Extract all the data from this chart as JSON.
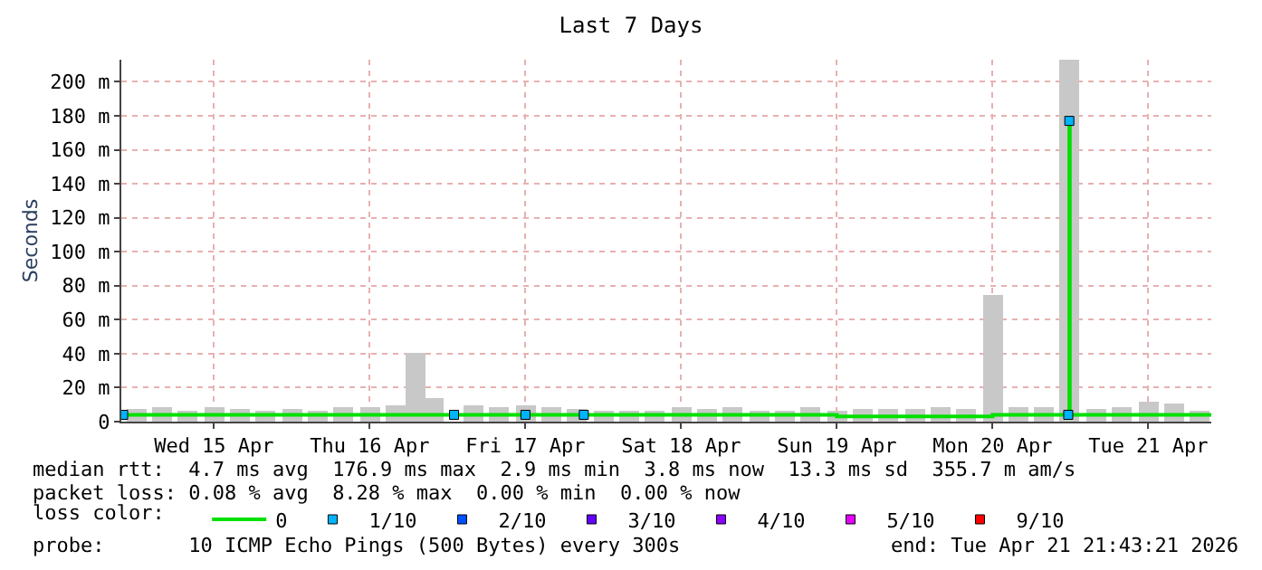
{
  "chart_data": {
    "type": "line",
    "title": "Last 7 Days",
    "ylabel": "Seconds",
    "xlim": [
      "2026-04-14T21:43",
      "2026-04-21T21:43"
    ],
    "xticks": [
      {
        "value": "2026-04-15T12:00",
        "label": "Wed 15 Apr"
      },
      {
        "value": "2026-04-16T12:00",
        "label": "Thu 16 Apr"
      },
      {
        "value": "2026-04-17T12:00",
        "label": "Fri 17 Apr"
      },
      {
        "value": "2026-04-18T12:00",
        "label": "Sat 18 Apr"
      },
      {
        "value": "2026-04-19T12:00",
        "label": "Sun 19 Apr"
      },
      {
        "value": "2026-04-20T12:00",
        "label": "Mon 20 Apr"
      },
      {
        "value": "2026-04-21T12:00",
        "label": "Tue 21 Apr"
      }
    ],
    "ylim": [
      0,
      213
    ],
    "yticks": [
      0,
      {
        "value": 20,
        "label": "20 m"
      },
      {
        "value": 40,
        "label": "40 m"
      },
      {
        "value": 60,
        "label": "60 m"
      },
      {
        "value": 80,
        "label": "80 m"
      },
      {
        "value": 100,
        "label": "100 m"
      },
      {
        "value": 120,
        "label": "120 m"
      },
      {
        "value": 140,
        "label": "140 m"
      },
      {
        "value": 160,
        "label": "160 m"
      },
      {
        "value": 180,
        "label": "180 m"
      },
      {
        "value": 200,
        "label": "200 m"
      }
    ],
    "grid": true,
    "legend": "bottom",
    "legend_title": "loss color:",
    "series": [
      {
        "type": "bar",
        "color": "#c8c8c8",
        "x": [
          "2026-04-15T00:00",
          "2026-04-15T04:00",
          "2026-04-15T08:00",
          "2026-04-15T12:00",
          "2026-04-15T16:00",
          "2026-04-15T20:00",
          "2026-04-16T00:00",
          "2026-04-16T04:00",
          "2026-04-16T08:00",
          "2026-04-16T12:00",
          "2026-04-16T16:00",
          "2026-04-16T19:00",
          "2026-04-16T22:00",
          "2026-04-17T04:00",
          "2026-04-17T08:00",
          "2026-04-17T12:00",
          "2026-04-17T16:00",
          "2026-04-17T20:00",
          "2026-04-18T00:00",
          "2026-04-18T04:00",
          "2026-04-18T08:00",
          "2026-04-18T12:00",
          "2026-04-18T16:00",
          "2026-04-18T20:00",
          "2026-04-19T00:00",
          "2026-04-19T04:00",
          "2026-04-19T08:00",
          "2026-04-19T12:00",
          "2026-04-19T16:00",
          "2026-04-19T20:00",
          "2026-04-20T00:00",
          "2026-04-20T04:00",
          "2026-04-20T08:00",
          "2026-04-20T12:00",
          "2026-04-20T16:00",
          "2026-04-20T20:00",
          "2026-04-20T23:50",
          "2026-04-21T04:00",
          "2026-04-21T08:00",
          "2026-04-21T12:00",
          "2026-04-21T16:00",
          "2026-04-21T20:00"
        ],
        "values": [
          7,
          8,
          6,
          9,
          7,
          6,
          7,
          6,
          8,
          9,
          10,
          40,
          14,
          10,
          8,
          10,
          8,
          7,
          6,
          6,
          6,
          8,
          7,
          8,
          6,
          6,
          8,
          6,
          7,
          7,
          7,
          8,
          7,
          75,
          9,
          9,
          213,
          7,
          8,
          12,
          11,
          6
        ]
      },
      {
        "name": "0",
        "color": "#00e000",
        "x": [
          "2026-04-14T21:43",
          "2026-04-17T12:00",
          "2026-04-19T08:00",
          "2026-04-19T12:00",
          "2026-04-20T12:00",
          "2026-04-20T23:45",
          "2026-04-20T23:50",
          "2026-04-20T23:55",
          "2026-04-21T21:43"
        ],
        "values": [
          4,
          4,
          4,
          3,
          4,
          4,
          177,
          4,
          4
        ]
      },
      {
        "name": "1/10",
        "type": "scatter",
        "marker": "square",
        "color": "#00b4ff",
        "x": [
          "2026-04-14T22:00",
          "2026-04-17T01:00",
          "2026-04-17T12:00",
          "2026-04-17T21:00",
          "2026-04-20T23:40",
          "2026-04-20T23:50"
        ],
        "values": [
          4,
          4,
          4,
          4,
          4,
          177
        ]
      },
      {
        "name": "2/10",
        "type": "scatter",
        "marker": "square",
        "color": "#0050ff"
      },
      {
        "name": "3/10",
        "type": "scatter",
        "marker": "square",
        "color": "#6400ff"
      },
      {
        "name": "4/10",
        "type": "scatter",
        "marker": "square",
        "color": "#8c00ff"
      },
      {
        "name": "5/10",
        "type": "scatter",
        "marker": "square",
        "color": "#e600ff"
      },
      {
        "name": "9/10",
        "type": "scatter",
        "marker": "square",
        "color": "#ff0000"
      }
    ],
    "annotations": [
      "median rtt:  4.7 ms avg  176.9 ms max  2.9 ms min  3.8 ms now  13.3 ms sd  355.7 m am/s",
      "packet loss: 0.08 % avg  8.28 % max  0.00 % min  0.00 % now",
      "probe:       10 ICMP Echo Pings (500 Bytes) every 300s",
      "end: Tue Apr 21 21:43:21 2026"
    ]
  }
}
